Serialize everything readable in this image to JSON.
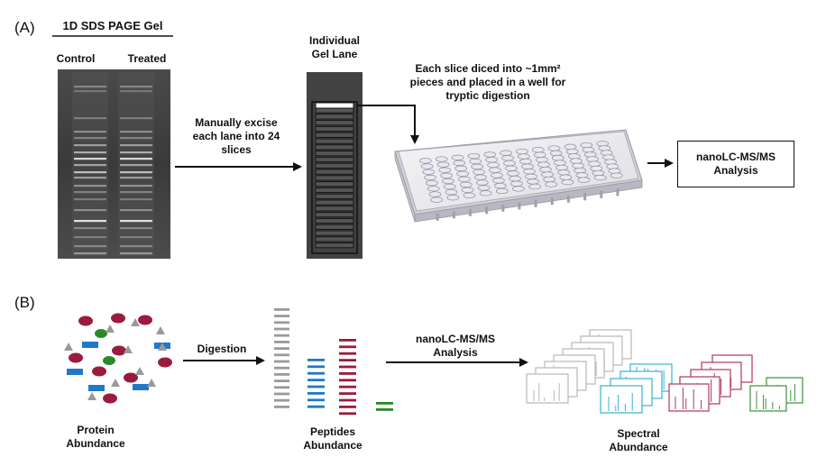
{
  "panel_a": {
    "label": "(A)",
    "gel_title": "1D SDS PAGE Gel",
    "lane_control": "Control",
    "lane_treated": "Treated",
    "excise_line1": "Manually excise",
    "excise_line2": "each lane into 24",
    "excise_line3": "slices",
    "lane_title_line1": "Individual",
    "lane_title_line2": "Gel Lane",
    "dice_line1": "Each slice diced into ~1mm²",
    "dice_line2": "pieces and placed in a well for",
    "dice_line3": "tryptic digestion",
    "analysis_line1": "nanoLC-MS/MS",
    "analysis_line2": "Analysis"
  },
  "panel_b": {
    "label": "(B)",
    "digestion": "Digestion",
    "analysis_line1": "nanoLC-MS/MS",
    "analysis_line2": "Analysis",
    "protein_line1": "Protein",
    "protein_line2": "Abundance",
    "peptides_line1": "Peptides",
    "peptides_line2": "Abundance",
    "spectral_line1": "Spectral",
    "spectral_line2": "Abundance"
  },
  "colors": {
    "maroon": "#9b1b3c",
    "blue": "#1f79c8",
    "green": "#2a8a2a",
    "gray": "#9a9a9a",
    "spectrum_gray": "#b8b8b8",
    "spectrum_blue": "#3ab0d8",
    "spectrum_maroon": "#b0365a",
    "spectrum_green": "#3d8f3d"
  }
}
